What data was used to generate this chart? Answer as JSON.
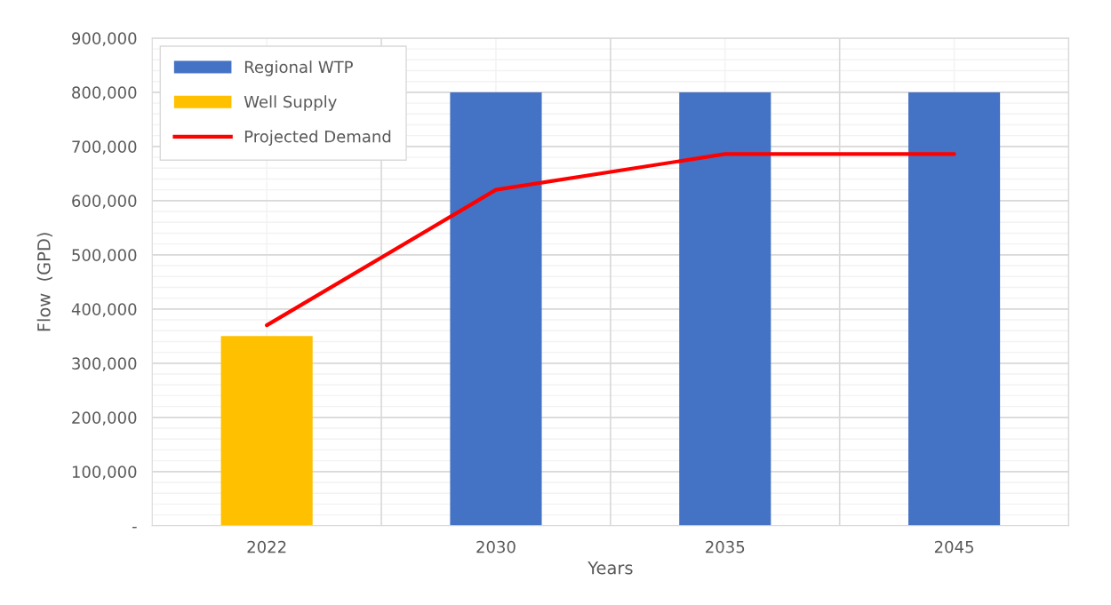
{
  "chart_data": {
    "type": "bar",
    "xlabel": "Years",
    "ylabel": "Flow  (GPD)",
    "categories": [
      "2022",
      "2030",
      "2035",
      "2045"
    ],
    "series": [
      {
        "name": "Regional WTP",
        "color": "#4472c4",
        "values": [
          null,
          800000,
          800000,
          800000
        ]
      },
      {
        "name": "Well Supply",
        "color": "#ffc000",
        "values": [
          350000,
          null,
          null,
          null
        ]
      },
      {
        "name": "Projected Demand",
        "type": "line",
        "color": "#ff0000",
        "values": [
          370000,
          620000,
          686000,
          686000
        ]
      }
    ],
    "ylim": [
      0,
      900000
    ],
    "yticks": [
      {
        "value": 0,
        "label": "-"
      },
      {
        "value": 100000,
        "label": "100,000"
      },
      {
        "value": 200000,
        "label": "200,000"
      },
      {
        "value": 300000,
        "label": "300,000"
      },
      {
        "value": 400000,
        "label": "400,000"
      },
      {
        "value": 500000,
        "label": "500,000"
      },
      {
        "value": 600000,
        "label": "600,000"
      },
      {
        "value": 700000,
        "label": "700,000"
      },
      {
        "value": 800000,
        "label": "800,000"
      },
      {
        "value": 900000,
        "label": "900,000"
      }
    ],
    "grid": true,
    "legend": "top left"
  }
}
